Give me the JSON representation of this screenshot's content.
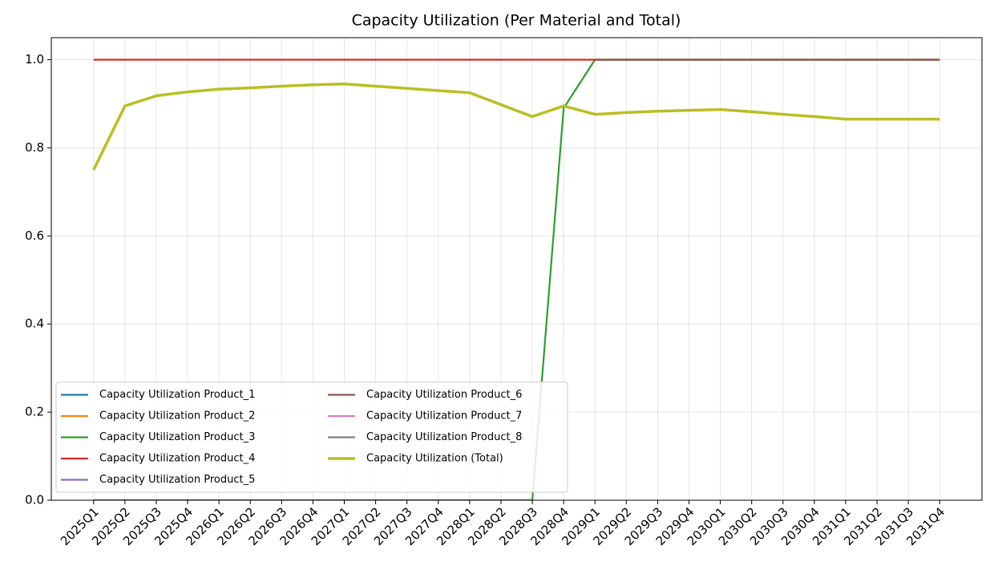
{
  "chart_data": {
    "type": "line",
    "title": "Capacity Utilization (Per Material and Total)",
    "categories": [
      "2025Q1",
      "2025Q2",
      "2025Q3",
      "2025Q4",
      "2026Q1",
      "2026Q2",
      "2026Q3",
      "2026Q4",
      "2027Q1",
      "2027Q2",
      "2027Q3",
      "2027Q4",
      "2028Q1",
      "2028Q2",
      "2028Q3",
      "2028Q4",
      "2029Q1",
      "2029Q2",
      "2029Q3",
      "2029Q4",
      "2030Q1",
      "2030Q2",
      "2030Q3",
      "2030Q4",
      "2031Q1",
      "2031Q2",
      "2031Q3",
      "2031Q4"
    ],
    "series": [
      {
        "name": "Capacity Utilization Product_1",
        "color": "#1f77b4",
        "values": [
          null,
          null,
          null,
          null,
          null,
          null,
          null,
          null,
          null,
          null,
          null,
          null,
          null,
          null,
          null,
          null,
          null,
          null,
          null,
          null,
          null,
          null,
          null,
          null,
          null,
          null,
          null,
          null
        ]
      },
      {
        "name": "Capacity Utilization Product_2",
        "color": "#ff7f0e",
        "values": [
          null,
          null,
          null,
          null,
          null,
          null,
          null,
          null,
          null,
          null,
          null,
          null,
          null,
          null,
          null,
          null,
          null,
          null,
          null,
          null,
          null,
          null,
          null,
          null,
          null,
          null,
          null,
          null
        ]
      },
      {
        "name": "Capacity Utilization Product_3",
        "color": "#2ca02c",
        "values": [
          0,
          0,
          0,
          0,
          0,
          0,
          0,
          0,
          0,
          0,
          0,
          0,
          0,
          0,
          0,
          0.89,
          1,
          1,
          1,
          1,
          1,
          1,
          1,
          1,
          1,
          1,
          1,
          1
        ]
      },
      {
        "name": "Capacity Utilization Product_4",
        "color": "#d62728",
        "values": [
          1,
          1,
          1,
          1,
          1,
          1,
          1,
          1,
          1,
          1,
          1,
          1,
          1,
          1,
          1,
          1,
          1,
          1,
          1,
          1,
          1,
          1,
          1,
          1,
          1,
          1,
          1,
          1
        ]
      },
      {
        "name": "Capacity Utilization Product_5",
        "color": "#9467bd",
        "values": [
          null,
          null,
          null,
          null,
          null,
          null,
          null,
          null,
          null,
          null,
          null,
          null,
          null,
          null,
          null,
          null,
          null,
          null,
          null,
          null,
          null,
          null,
          null,
          null,
          null,
          null,
          null,
          null
        ]
      },
      {
        "name": "Capacity Utilization Product_6",
        "color": "#8c564b",
        "values": [
          null,
          null,
          null,
          null,
          null,
          null,
          null,
          null,
          null,
          null,
          null,
          null,
          null,
          null,
          null,
          null,
          1,
          1,
          1,
          1,
          1,
          1,
          1,
          1,
          1,
          1,
          1,
          1
        ]
      },
      {
        "name": "Capacity Utilization Product_7",
        "color": "#e377c2",
        "values": [
          null,
          null,
          null,
          null,
          null,
          null,
          null,
          null,
          null,
          null,
          null,
          null,
          null,
          null,
          null,
          null,
          null,
          null,
          null,
          null,
          null,
          null,
          null,
          null,
          null,
          null,
          null,
          null
        ]
      },
      {
        "name": "Capacity Utilization Product_8",
        "color": "#7f7f7f",
        "values": [
          null,
          null,
          null,
          null,
          null,
          null,
          null,
          null,
          null,
          null,
          null,
          null,
          null,
          null,
          null,
          null,
          null,
          null,
          null,
          null,
          null,
          null,
          null,
          null,
          null,
          null,
          null,
          null
        ]
      },
      {
        "name": "Capacity Utilization (Total)",
        "color": "#bcbd22",
        "values": [
          0.75,
          0.895,
          0.918,
          0.927,
          0.933,
          0.936,
          0.94,
          0.943,
          0.945,
          0.94,
          0.935,
          0.93,
          0.925,
          0.898,
          0.871,
          0.895,
          0.876,
          0.88,
          0.883,
          0.885,
          0.887,
          0.882,
          0.876,
          0.871,
          0.865,
          0.865,
          0.865,
          0.865
        ]
      }
    ],
    "ylim": [
      0,
      1.05
    ],
    "yticks": [
      {
        "value": 0,
        "label": "0.0"
      },
      {
        "value": 0.2,
        "label": "0.2"
      },
      {
        "value": 0.4,
        "label": "0.4"
      },
      {
        "value": 0.6,
        "label": "0.6"
      },
      {
        "value": 0.8,
        "label": "0.8"
      },
      {
        "value": 1,
        "label": "1.0"
      }
    ],
    "grid": true,
    "legend": "lower left"
  }
}
